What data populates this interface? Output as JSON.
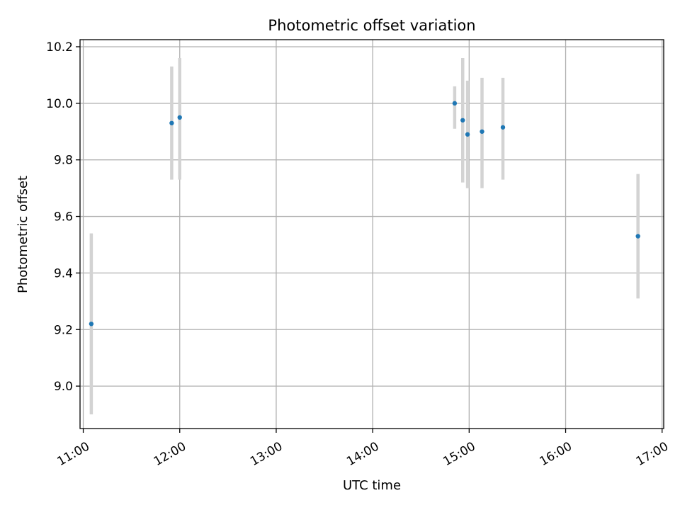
{
  "chart_data": {
    "type": "scatter",
    "title": "Photometric offset variation",
    "xlabel": "UTC time",
    "ylabel": "Photometric offset",
    "x_unit": "time of day (UTC)",
    "xlim": [
      "10:58",
      "17:01"
    ],
    "ylim": [
      8.85,
      10.225
    ],
    "x_ticks": [
      "11:00",
      "12:00",
      "13:00",
      "14:00",
      "15:00",
      "16:00",
      "17:00"
    ],
    "y_ticks": [
      9.0,
      9.2,
      9.4,
      9.6,
      9.8,
      10.0,
      10.2
    ],
    "y_tick_labels": [
      "9.0",
      "9.2",
      "9.4",
      "9.6",
      "9.8",
      "10.0",
      "10.2"
    ],
    "grid": true,
    "legend": "none",
    "colors": {
      "point": "#1f77b4",
      "errorbar": "#d3d3d3",
      "grid": "#b0b0b0"
    },
    "points": [
      {
        "x": "11:05",
        "y": 9.22,
        "y_low": 8.9,
        "y_high": 9.54
      },
      {
        "x": "11:55",
        "y": 9.93,
        "y_low": 9.73,
        "y_high": 10.13
      },
      {
        "x": "12:00",
        "y": 9.95,
        "y_low": 9.73,
        "y_high": 10.16
      },
      {
        "x": "14:51",
        "y": 10.0,
        "y_low": 9.91,
        "y_high": 10.06
      },
      {
        "x": "14:56",
        "y": 9.94,
        "y_low": 9.72,
        "y_high": 10.16
      },
      {
        "x": "14:59",
        "y": 9.89,
        "y_low": 9.7,
        "y_high": 10.08
      },
      {
        "x": "15:08",
        "y": 9.9,
        "y_low": 9.7,
        "y_high": 10.09
      },
      {
        "x": "15:21",
        "y": 9.915,
        "y_low": 9.73,
        "y_high": 10.09
      },
      {
        "x": "16:45",
        "y": 9.53,
        "y_low": 9.31,
        "y_high": 9.75
      }
    ]
  }
}
